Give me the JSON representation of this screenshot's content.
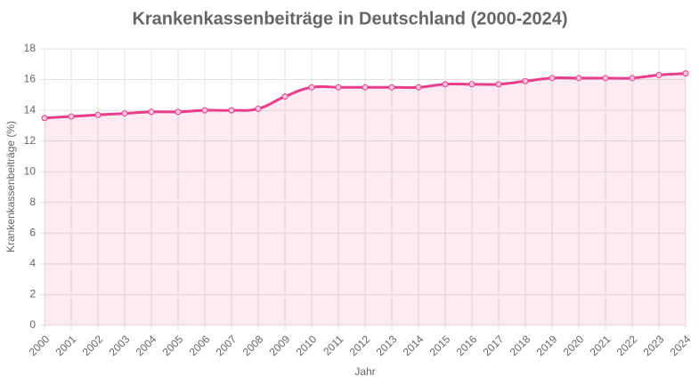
{
  "chart_data": {
    "type": "line",
    "title": "Krankenkassenbeiträge in Deutschland (2000-2024)",
    "x_label": "Jahr",
    "y_label": "Krankenkassenbeiträge (%)",
    "categories": [
      "2000",
      "2001",
      "2002",
      "2003",
      "2004",
      "2005",
      "2006",
      "2007",
      "2008",
      "2009",
      "2010",
      "2011",
      "2012",
      "2013",
      "2014",
      "2015",
      "2016",
      "2017",
      "2018",
      "2019",
      "2020",
      "2021",
      "2022",
      "2023",
      "2024"
    ],
    "series": [
      {
        "name": "Krankenkassenbeiträge (%)",
        "color": "#e83e8c",
        "values": [
          13.5,
          13.6,
          13.7,
          13.8,
          13.9,
          13.9,
          14.0,
          14.0,
          14.1,
          14.9,
          15.5,
          15.5,
          15.5,
          15.5,
          15.5,
          15.7,
          15.7,
          15.7,
          15.9,
          16.1,
          16.1,
          16.1,
          16.1,
          16.3,
          16.4
        ]
      }
    ],
    "ylim": [
      0,
      18
    ],
    "yticks": [
      0,
      2,
      4,
      6,
      8,
      10,
      12,
      14,
      16,
      18
    ],
    "grid": true,
    "fill": true
  }
}
